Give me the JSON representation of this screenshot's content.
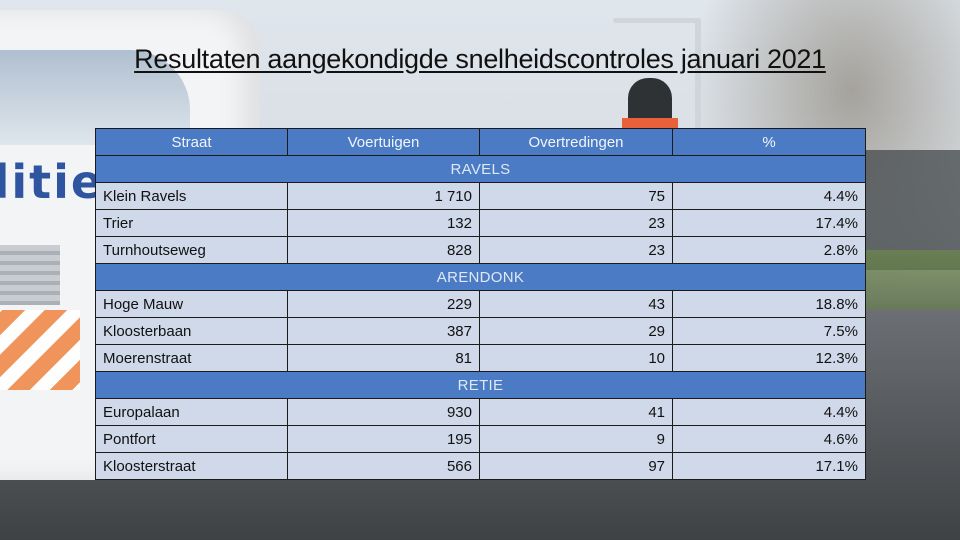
{
  "title": "Resultaten aangekondigde snelheidscontroles januari 2021",
  "background_van_text": "olitie",
  "table": {
    "headers": [
      "Straat",
      "Voertuigen",
      "Overtredingen",
      "%"
    ],
    "sections": [
      {
        "name": "RAVELS",
        "rows": [
          {
            "straat": "Klein Ravels",
            "voertuigen": "1 710",
            "overtredingen": "75",
            "pct": "4.4%"
          },
          {
            "straat": "Trier",
            "voertuigen": "132",
            "overtredingen": "23",
            "pct": "17.4%"
          },
          {
            "straat": "Turnhoutseweg",
            "voertuigen": "828",
            "overtredingen": "23",
            "pct": "2.8%"
          }
        ]
      },
      {
        "name": "ARENDONK",
        "rows": [
          {
            "straat": "Hoge Mauw",
            "voertuigen": "229",
            "overtredingen": "43",
            "pct": "18.8%"
          },
          {
            "straat": "Kloosterbaan",
            "voertuigen": "387",
            "overtredingen": "29",
            "pct": "7.5%"
          },
          {
            "straat": "Moerenstraat",
            "voertuigen": "81",
            "overtredingen": "10",
            "pct": "12.3%"
          }
        ]
      },
      {
        "name": "RETIE",
        "rows": [
          {
            "straat": "Europalaan",
            "voertuigen": "930",
            "overtredingen": "41",
            "pct": "4.4%"
          },
          {
            "straat": "Pontfort",
            "voertuigen": "195",
            "overtredingen": "9",
            "pct": "4.6%"
          },
          {
            "straat": "Kloosterstraat",
            "voertuigen": "566",
            "overtredingen": "97",
            "pct": "17.1%"
          }
        ]
      }
    ]
  },
  "colors": {
    "header_blue": "#4a7bc4",
    "row_light_blue": "#cfd9ea"
  }
}
